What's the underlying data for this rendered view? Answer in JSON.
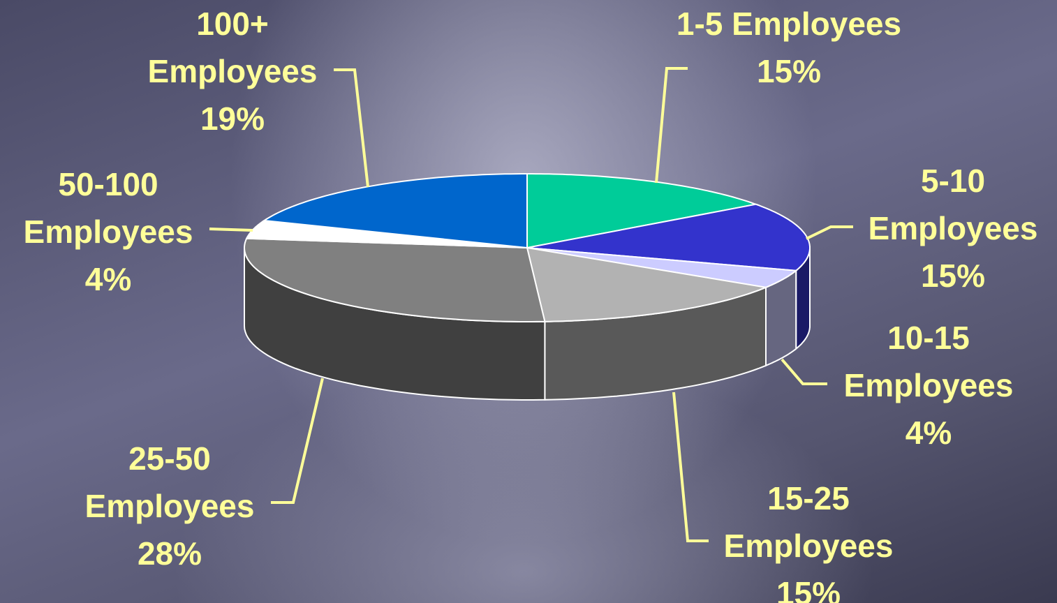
{
  "chart_data": {
    "type": "pie3d",
    "categories": [
      "1-5 Employees",
      "5-10 Employees",
      "10-15 Employees",
      "15-25 Employees",
      "25-50 Employees",
      "50-100 Employees",
      "100+ Employees"
    ],
    "values": [
      15,
      15,
      4,
      15,
      28,
      4,
      19
    ],
    "value_labels": [
      "15%",
      "15%",
      "4%",
      "15%",
      "28%",
      "4%",
      "19%"
    ],
    "colors": [
      "#00cc99",
      "#3333cc",
      "#ccccff",
      "#b2b2b2",
      "#808080",
      "#ffffff",
      "#0066cc"
    ]
  }
}
